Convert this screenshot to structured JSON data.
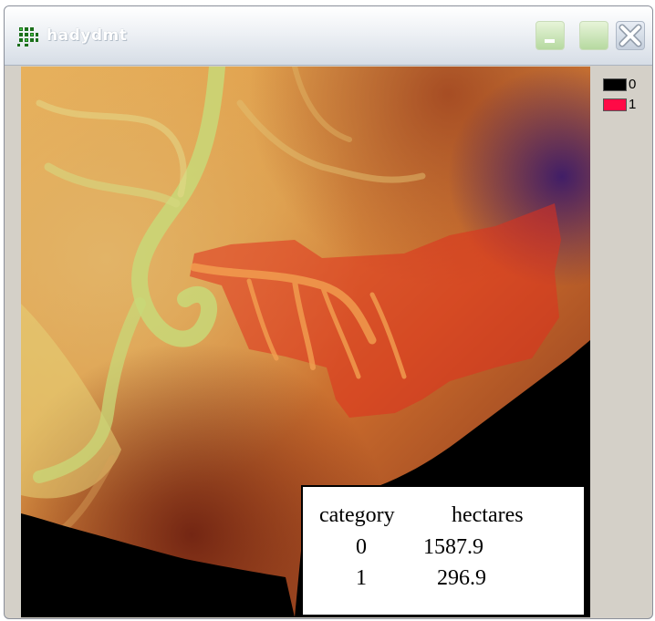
{
  "window": {
    "title": "hadydmt"
  },
  "legend": [
    {
      "label": "0",
      "color": "#000000"
    },
    {
      "label": "1",
      "color": "#ff0a46"
    }
  ],
  "stats_table": {
    "headers": [
      "category",
      "hectares"
    ],
    "rows": [
      [
        "0",
        "1587.9"
      ],
      [
        "1",
        "296.9"
      ]
    ]
  }
}
